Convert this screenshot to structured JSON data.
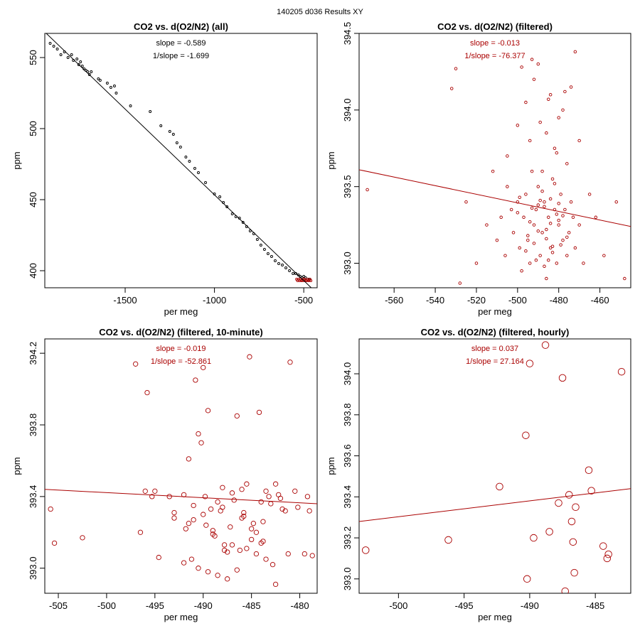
{
  "suptitle": "140205   d036   Results XY",
  "colors": {
    "all": "#000000",
    "filtered": "#aa0000"
  },
  "chart_data": [
    {
      "type": "scatter",
      "title": "CO2 vs. d(O2/N2) (all)",
      "xlabel": "per meg",
      "ylabel": "ppm",
      "xlim": [
        -1950,
        -425
      ],
      "ylim": [
        388,
        567
      ],
      "xticks": [
        -1500,
        -1000,
        -500
      ],
      "yticks": [
        400,
        450,
        500,
        550
      ],
      "annotations": [
        "slope = -0.589",
        "1/slope = -1.699"
      ],
      "fit": {
        "x": [
          -1950,
          -425
        ],
        "y": [
          568,
          384
        ]
      },
      "marker_size": 1.5,
      "series": [
        {
          "color": "#000000",
          "x": [
            -1920,
            -1900,
            -1880,
            -1860,
            -1840,
            -1820,
            -1800,
            -1790,
            -1770,
            -1760,
            -1750,
            -1740,
            -1730,
            -1720,
            -1710,
            -1700,
            -1690,
            -1650,
            -1640,
            -1600,
            -1580,
            -1560,
            -1550,
            -1470,
            -1360,
            -1300,
            -1250,
            -1230,
            -1210,
            -1190,
            -1160,
            -1140,
            -1110,
            -1090,
            -1050,
            -1000,
            -970,
            -950,
            -930,
            -900,
            -880,
            -860,
            -840,
            -820,
            -800,
            -780,
            -760,
            -740,
            -720,
            -700,
            -680,
            -660,
            -640,
            -620,
            -600,
            -580,
            -560,
            -545,
            -530,
            -520,
            -510,
            -500,
            -490,
            -480,
            -470
          ],
          "y": [
            560,
            558,
            556,
            552,
            554,
            550,
            552,
            548,
            549,
            545,
            547,
            544,
            542,
            541,
            540,
            538,
            540,
            535,
            534,
            532,
            529,
            530,
            525,
            516,
            512,
            502,
            498,
            496,
            490,
            487,
            480,
            477,
            472,
            469,
            462,
            454,
            452,
            448,
            445,
            440,
            438,
            437,
            434,
            431,
            428,
            426,
            422,
            418,
            415,
            412,
            410,
            407,
            405,
            404,
            402,
            400,
            398,
            398,
            397,
            396,
            395,
            396,
            395,
            394,
            394
          ]
        },
        {
          "color": "#aa0000",
          "x": [
            -540,
            -535,
            -530,
            -525,
            -520,
            -515,
            -510,
            -505,
            -500,
            -495,
            -490,
            -485,
            -480,
            -475,
            -470,
            -465,
            -460
          ],
          "y": [
            394,
            393,
            394,
            393,
            394,
            393,
            393,
            394,
            393,
            394,
            393,
            393,
            394,
            393,
            393,
            394,
            393
          ]
        }
      ]
    },
    {
      "type": "scatter",
      "title": "CO2 vs. d(O2/N2) (filtered)",
      "xlabel": "per meg",
      "ylabel": "ppm",
      "xlim": [
        -577,
        -445
      ],
      "ylim": [
        392.84,
        394.5
      ],
      "xticks": [
        -560,
        -540,
        -520,
        -500,
        -480,
        -460
      ],
      "yticks": [
        393.0,
        393.5,
        394.0,
        394.5
      ],
      "annotations": [
        "slope = -0.013",
        "1/slope = -76.377"
      ],
      "fit": {
        "x": [
          -577,
          -445
        ],
        "y": [
          393.61,
          393.24
        ]
      },
      "marker_size": 1.8,
      "series": [
        {
          "color": "#aa0000",
          "x": [
            -573,
            -532,
            -530,
            -528,
            -525,
            -520,
            -515,
            -512,
            -510,
            -508,
            -506,
            -505,
            -503,
            -502,
            -500,
            -499,
            -498,
            -497,
            -496,
            -495,
            -494,
            -493,
            -492,
            -491,
            -490,
            -489,
            -488,
            -487,
            -486,
            -485,
            -484,
            -483,
            -482,
            -481,
            -480,
            -479,
            -478,
            -477,
            -476,
            -475,
            -474,
            -473,
            -472,
            -470,
            -468,
            -465,
            -462,
            -458,
            -452,
            -448,
            -505,
            -500,
            -496,
            -494,
            -492,
            -490,
            -488,
            -486,
            -484,
            -482,
            -480,
            -478,
            -476,
            -474,
            -472,
            -470,
            -498,
            -493,
            -489,
            -485,
            -481,
            -477,
            -491,
            -487,
            -483,
            -479,
            -495,
            -486,
            -480,
            -500,
            -490,
            -484,
            -488,
            -482,
            -496,
            -492,
            -476,
            -494,
            -481,
            -487,
            -499,
            -485,
            -483,
            -490,
            -478,
            -493,
            -489,
            -486,
            -484,
            -480
          ],
          "y": [
            393.48,
            394.14,
            394.27,
            392.87,
            393.4,
            393.0,
            393.25,
            393.6,
            393.15,
            393.3,
            393.05,
            393.5,
            393.35,
            393.2,
            393.4,
            393.1,
            392.95,
            393.3,
            393.45,
            393.15,
            393.0,
            393.6,
            393.25,
            393.35,
            393.5,
            393.05,
            393.2,
            393.4,
            392.9,
            393.3,
            393.1,
            393.55,
            393.35,
            393.0,
            393.25,
            393.45,
            393.15,
            393.35,
            393.05,
            393.2,
            393.4,
            393.3,
            393.1,
            393.25,
            393.0,
            393.45,
            393.3,
            393.05,
            393.4,
            392.9,
            393.7,
            393.9,
            394.05,
            393.8,
            394.2,
            394.3,
            393.6,
            393.85,
            394.1,
            393.75,
            393.95,
            394.0,
            393.65,
            394.15,
            394.38,
            393.8,
            394.28,
            394.33,
            393.92,
            394.07,
            393.72,
            394.12,
            393.02,
            392.98,
            393.07,
            393.12,
            393.18,
            393.22,
            393.28,
            393.33,
            393.38,
            393.42,
            393.47,
            393.52,
            393.08,
            393.13,
            393.17,
            393.27,
            393.32,
            393.37,
            393.43,
            393.02,
            393.11,
            393.21,
            393.31,
            393.36,
            393.41,
            393.16,
            393.26,
            393.39
          ]
        }
      ]
    },
    {
      "type": "scatter",
      "title": "CO2 vs. d(O2/N2) (filtered, 10-minute)",
      "xlabel": "per meg",
      "ylabel": "ppm",
      "xlim": [
        -506.4,
        -478.2
      ],
      "ylim": [
        392.86,
        394.28
      ],
      "xticks": [
        -505,
        -500,
        -495,
        -490,
        -485,
        -480
      ],
      "yticks": [
        393.0,
        393.4,
        393.8,
        394.2
      ],
      "annotations": [
        "slope = -0.019",
        "1/slope = -52.861"
      ],
      "fit": {
        "x": [
          -506.4,
          -478.2
        ],
        "y": [
          393.44,
          393.36
        ]
      },
      "marker_size": 3.2,
      "series": [
        {
          "color": "#aa0000",
          "x": [
            -505.8,
            -505.4,
            -502.5,
            -497,
            -496.5,
            -496,
            -495.8,
            -495.3,
            -495,
            -494.6,
            -493.5,
            -493,
            -492,
            -491.8,
            -491.5,
            -491.2,
            -491,
            -490.8,
            -490.5,
            -490.2,
            -490,
            -489.8,
            -489.5,
            -489.2,
            -489,
            -488.8,
            -488.5,
            -488.2,
            -488,
            -487.8,
            -487.5,
            -487.2,
            -487,
            -486.8,
            -486.5,
            -486.2,
            -486,
            -485.8,
            -485.5,
            -485.2,
            -485,
            -484.8,
            -484.5,
            -484.2,
            -484,
            -483.8,
            -483.5,
            -483.2,
            -483,
            -482.8,
            -482.5,
            -482.2,
            -482,
            -481.8,
            -481.5,
            -481.2,
            -481,
            -480.5,
            -480.2,
            -479.5,
            -479.2,
            -479,
            -478.7,
            -490.5,
            -489.5,
            -488.5,
            -487.5,
            -486.5,
            -485.5,
            -484.5,
            -483.5,
            -482.5,
            -491.5,
            -490,
            -488,
            -486,
            -484,
            -489,
            -487,
            -485,
            -492,
            -493,
            -491,
            -489.7,
            -487.8,
            -485.8,
            -483.8
          ],
          "y": [
            393.33,
            393.14,
            393.17,
            394.14,
            393.2,
            393.43,
            393.98,
            393.4,
            393.43,
            393.06,
            393.4,
            393.31,
            393.41,
            393.22,
            393.61,
            393.05,
            393.27,
            394.05,
            393.75,
            393.7,
            394.12,
            393.4,
            393.88,
            393.33,
            393.21,
            393.18,
            393.37,
            393.32,
            393.45,
            393.13,
            393.09,
            393.23,
            393.42,
            393.38,
            393.85,
            393.1,
            393.28,
            393.31,
            393.47,
            394.18,
            393.22,
            393.25,
            393.2,
            393.87,
            393.14,
            393.26,
            393.43,
            393.4,
            393.36,
            393.02,
            393.47,
            393.41,
            393.39,
            393.33,
            393.32,
            393.08,
            394.15,
            393.43,
            393.34,
            393.08,
            393.4,
            393.32,
            393.07,
            393.0,
            392.98,
            392.96,
            392.94,
            392.99,
            393.11,
            393.08,
            393.05,
            392.91,
            393.25,
            393.3,
            393.34,
            393.44,
            393.37,
            393.19,
            393.13,
            393.16,
            393.03,
            393.28,
            393.35,
            393.24,
            393.1,
            393.29,
            393.15
          ]
        }
      ]
    },
    {
      "type": "scatter",
      "title": "CO2 vs. d(O2/N2) (filtered, hourly)",
      "xlabel": "per meg",
      "ylabel": "ppm",
      "xlim": [
        -503.0,
        -482.3
      ],
      "ylim": [
        392.93,
        394.17
      ],
      "xticks": [
        -500,
        -495,
        -490,
        -485
      ],
      "yticks": [
        393.0,
        393.2,
        393.4,
        393.6,
        393.8,
        394.0
      ],
      "annotations": [
        "slope = 0.037",
        "1/slope = 27.164"
      ],
      "fit": {
        "x": [
          -503.0,
          -482.3
        ],
        "y": [
          393.28,
          393.44
        ]
      },
      "marker_size": 4.8,
      "series": [
        {
          "color": "#aa0000",
          "x": [
            -502.5,
            -496.2,
            -492.3,
            -490.3,
            -490.2,
            -490.0,
            -489.7,
            -488.8,
            -488.5,
            -487.8,
            -487.5,
            -487.3,
            -487.0,
            -486.8,
            -486.7,
            -486.6,
            -486.5,
            -485.5,
            -485.3,
            -484.4,
            -484.1,
            -484.0,
            -483.0
          ],
          "y": [
            393.14,
            393.19,
            393.45,
            393.7,
            393.0,
            394.05,
            393.2,
            394.14,
            393.23,
            393.37,
            393.98,
            392.94,
            393.41,
            393.28,
            393.18,
            393.03,
            393.35,
            393.53,
            393.43,
            393.16,
            393.1,
            393.12,
            394.01
          ]
        }
      ]
    }
  ]
}
